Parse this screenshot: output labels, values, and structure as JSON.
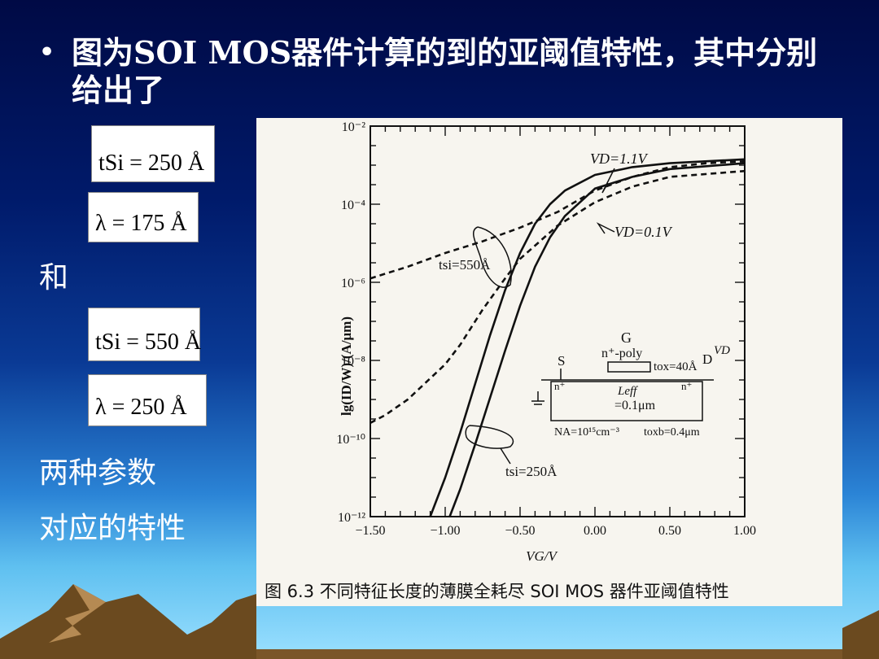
{
  "slide": {
    "bullet_symbol": "•",
    "bullet_text": "图为SOI  MOS器件计算的到的亚阈值特性，其中分别给出了",
    "formula_1": "tSi = 250 Å",
    "formula_2": "λ = 175 Å",
    "and_label": "和",
    "formula_3": "tSi = 550 Å",
    "formula_4": "λ = 250 Å",
    "two_params": "两种参数",
    "corresponding": "对应的特性"
  },
  "figure": {
    "caption": "图 6.3   不同特征长度的薄膜全耗尽 SOI MOS 器件亚阈值特性",
    "annotations": {
      "vd_high": "VD=1.1V",
      "vd_low": "VD=0.1V",
      "tsi_550": "tsi=550Å",
      "tsi_250": "tsi=250Å",
      "inset_g": "G",
      "inset_poly": "n⁺-poly",
      "inset_s": "S",
      "inset_d": "D",
      "inset_vd": "VD",
      "inset_tox": "tox=40Å",
      "inset_n1": "n⁺",
      "inset_n2": "n⁺",
      "inset_leff": "Leff",
      "inset_leff_val": "=0.1μm",
      "inset_na": "NA=10¹⁵cm⁻³",
      "inset_tbox": "toxb=0.4μm"
    }
  },
  "chart_data": {
    "type": "line",
    "xlabel": "VG/V",
    "ylabel": "lg(ID/W)/(A/μm)",
    "x_ticks": [
      "−1.50",
      "−1.00",
      "−0.50",
      "0.00",
      "0.50",
      "1.00"
    ],
    "y_ticks": [
      "10⁻²",
      "10⁻⁴",
      "10⁻⁶",
      "10⁻⁸",
      "10⁻¹⁰",
      "10⁻¹²"
    ],
    "xlim": [
      -1.5,
      1.0
    ],
    "ylim": [
      -12,
      -2
    ],
    "y_scale": "log",
    "series": [
      {
        "name": "tsi=550Å, VD=1.1V",
        "style": "dashed",
        "x": [
          -1.5,
          -1.25,
          -1.0,
          -0.75,
          -0.5,
          -0.25,
          0.0,
          0.25,
          0.5,
          0.75,
          1.0
        ],
        "y": [
          -5.9,
          -5.6,
          -5.25,
          -4.95,
          -4.6,
          -4.2,
          -3.65,
          -3.3,
          -3.05,
          -2.95,
          -2.9
        ]
      },
      {
        "name": "tsi=550Å, VD=0.1V",
        "style": "dashed",
        "x": [
          -1.5,
          -1.4,
          -1.25,
          -1.0,
          -0.9,
          -0.75,
          -0.6,
          -0.5,
          -0.25,
          0.0,
          0.25,
          0.5,
          1.0
        ],
        "y": [
          -9.6,
          -9.4,
          -9.0,
          -8.1,
          -7.6,
          -6.7,
          -5.9,
          -5.4,
          -4.55,
          -3.95,
          -3.55,
          -3.3,
          -3.15
        ]
      },
      {
        "name": "tsi=250Å, VD=1.1V",
        "style": "solid",
        "x": [
          -1.1,
          -1.0,
          -0.9,
          -0.8,
          -0.7,
          -0.6,
          -0.5,
          -0.4,
          -0.3,
          -0.2,
          0.0,
          0.25,
          0.5,
          1.0
        ],
        "y": [
          -12.0,
          -11.0,
          -9.85,
          -8.6,
          -7.35,
          -6.2,
          -5.25,
          -4.5,
          -4.0,
          -3.65,
          -3.25,
          -3.05,
          -2.95,
          -2.85
        ]
      },
      {
        "name": "tsi=250Å, VD=0.1V",
        "style": "solid",
        "x": [
          -0.97,
          -0.9,
          -0.8,
          -0.7,
          -0.6,
          -0.5,
          -0.4,
          -0.3,
          -0.2,
          0.0,
          0.25,
          0.5,
          1.0
        ],
        "y": [
          -12.0,
          -11.3,
          -10.15,
          -8.95,
          -7.75,
          -6.6,
          -5.6,
          -4.85,
          -4.3,
          -3.6,
          -3.3,
          -3.1,
          -2.95
        ]
      }
    ]
  }
}
